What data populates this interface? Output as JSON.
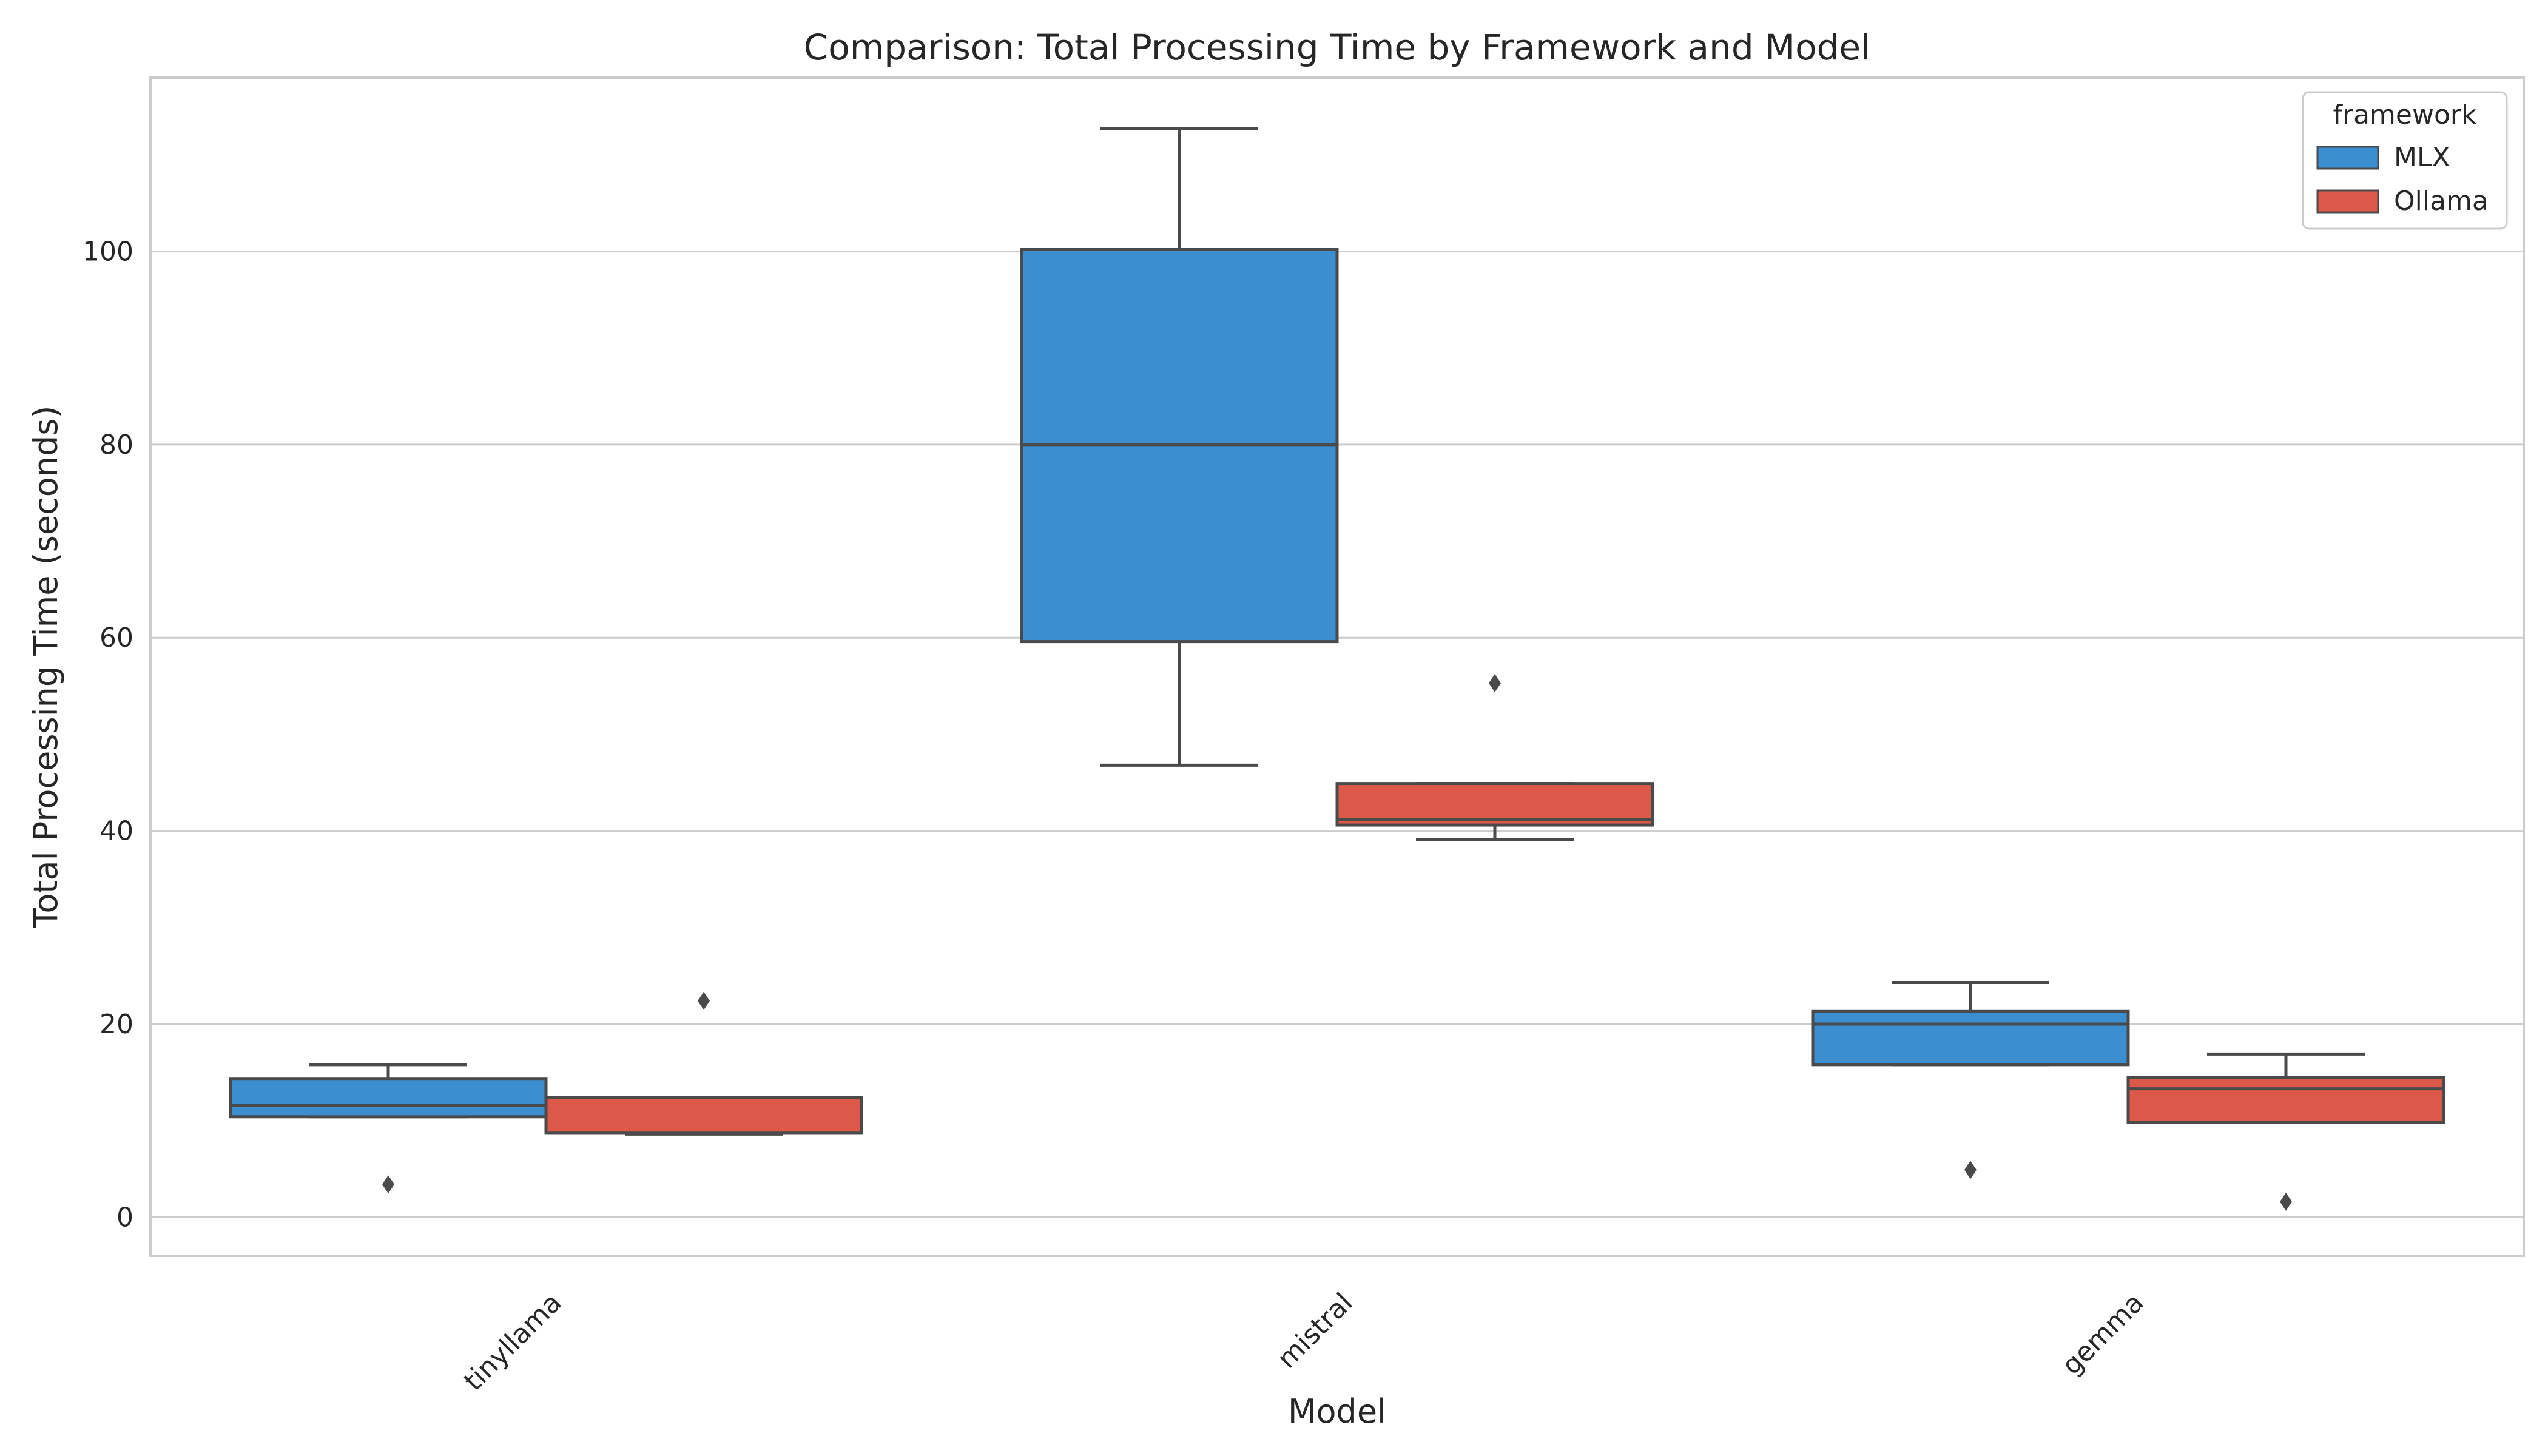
{
  "chart_data": {
    "type": "box",
    "title": "Comparison: Total Processing Time by Framework and Model",
    "xlabel": "Model",
    "ylabel": "Total Processing Time (seconds)",
    "categories": [
      "tinyllama",
      "mistral",
      "gemma"
    ],
    "ylim": [
      -4,
      118
    ],
    "yticks": [
      0,
      20,
      40,
      60,
      80,
      100
    ],
    "grid": true,
    "legend": {
      "title": "framework",
      "placement": "top-right"
    },
    "series": [
      {
        "name": "MLX",
        "color": "#3b8fd0",
        "boxes": [
          {
            "whisker_low": 10.4,
            "q1": 10.4,
            "median": 11.6,
            "q3": 14.3,
            "whisker_high": 15.8,
            "outliers": [
              3.4
            ]
          },
          {
            "whisker_low": 46.8,
            "q1": 59.6,
            "median": 80.0,
            "q3": 100.2,
            "whisker_high": 112.7,
            "outliers": []
          },
          {
            "whisker_low": 15.8,
            "q1": 15.8,
            "median": 20.0,
            "q3": 21.3,
            "whisker_high": 24.3,
            "outliers": [
              4.9
            ]
          }
        ]
      },
      {
        "name": "Ollama",
        "color": "#dc5848",
        "boxes": [
          {
            "whisker_low": 8.6,
            "q1": 8.7,
            "median": 8.7,
            "q3": 12.4,
            "whisker_high": 12.4,
            "outliers": [
              22.4
            ]
          },
          {
            "whisker_low": 39.1,
            "q1": 40.6,
            "median": 41.2,
            "q3": 44.9,
            "whisker_high": 44.9,
            "outliers": [
              55.3
            ]
          },
          {
            "whisker_low": 9.8,
            "q1": 9.8,
            "median": 13.3,
            "q3": 14.5,
            "whisker_high": 16.9,
            "outliers": [
              1.6
            ]
          }
        ]
      }
    ]
  }
}
